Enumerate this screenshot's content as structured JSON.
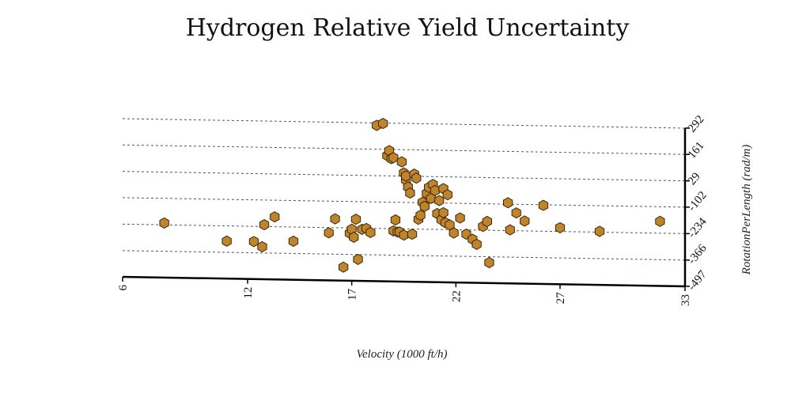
{
  "chart_data": {
    "type": "scatter",
    "title": "Hydrogen Relative Yield Uncertainty",
    "xlabel": "Velocity (1000 ft/h)",
    "ylabel": "RotationPerLength (rad/m)",
    "xlim": [
      6,
      33
    ],
    "ylim": [
      -497,
      292
    ],
    "xticks": [
      "6",
      "12",
      "17",
      "22",
      "27",
      "33"
    ],
    "yticks": [
      "292",
      "161",
      "29",
      "-102",
      "-234",
      "-366",
      "-497"
    ],
    "grid": "horizontal",
    "marker": "hexagon",
    "marker_color": "#c0842c",
    "series": [
      {
        "x": [
          8.0,
          11.0,
          12.3,
          12.7,
          12.8,
          13.3,
          14.2,
          15.9,
          16.2,
          16.6,
          16.9,
          17.0,
          17.1,
          17.2,
          17.3,
          17.5,
          17.7,
          17.9,
          18.2,
          18.5,
          18.7,
          18.8,
          18.9,
          19.0,
          19.0,
          19.1,
          19.2,
          19.3,
          19.4,
          19.5,
          19.5,
          19.6,
          19.6,
          19.7,
          19.8,
          19.9,
          20.0,
          20.1,
          20.2,
          20.3,
          20.4,
          20.5,
          20.6,
          20.7,
          20.8,
          20.9,
          21.0,
          21.1,
          21.2,
          21.3,
          21.4,
          21.4,
          21.5,
          21.6,
          21.7,
          21.9,
          22.2,
          22.5,
          22.8,
          23.0,
          23.3,
          23.6,
          23.5,
          24.5,
          24.6,
          24.9,
          25.3,
          26.2,
          27.0,
          28.9,
          31.8
        ],
        "y": [
          -225,
          -310,
          -310,
          -335,
          -225,
          -185,
          -305,
          -260,
          -190,
          -430,
          -260,
          -240,
          -280,
          -190,
          -390,
          -240,
          -235,
          -255,
          280,
          290,
          130,
          155,
          115,
          120,
          -245,
          -190,
          -250,
          -250,
          100,
          45,
          -265,
          10,
          30,
          -25,
          -55,
          -260,
          40,
          20,
          -185,
          -165,
          -100,
          -120,
          -55,
          -25,
          -80,
          -10,
          -40,
          -155,
          -90,
          -185,
          -30,
          -150,
          -200,
          -60,
          -210,
          -250,
          -175,
          -255,
          -280,
          -305,
          -215,
          -395,
          -190,
          -95,
          -230,
          -145,
          -185,
          -105,
          -215,
          -230,
          -175
        ]
      }
    ]
  }
}
